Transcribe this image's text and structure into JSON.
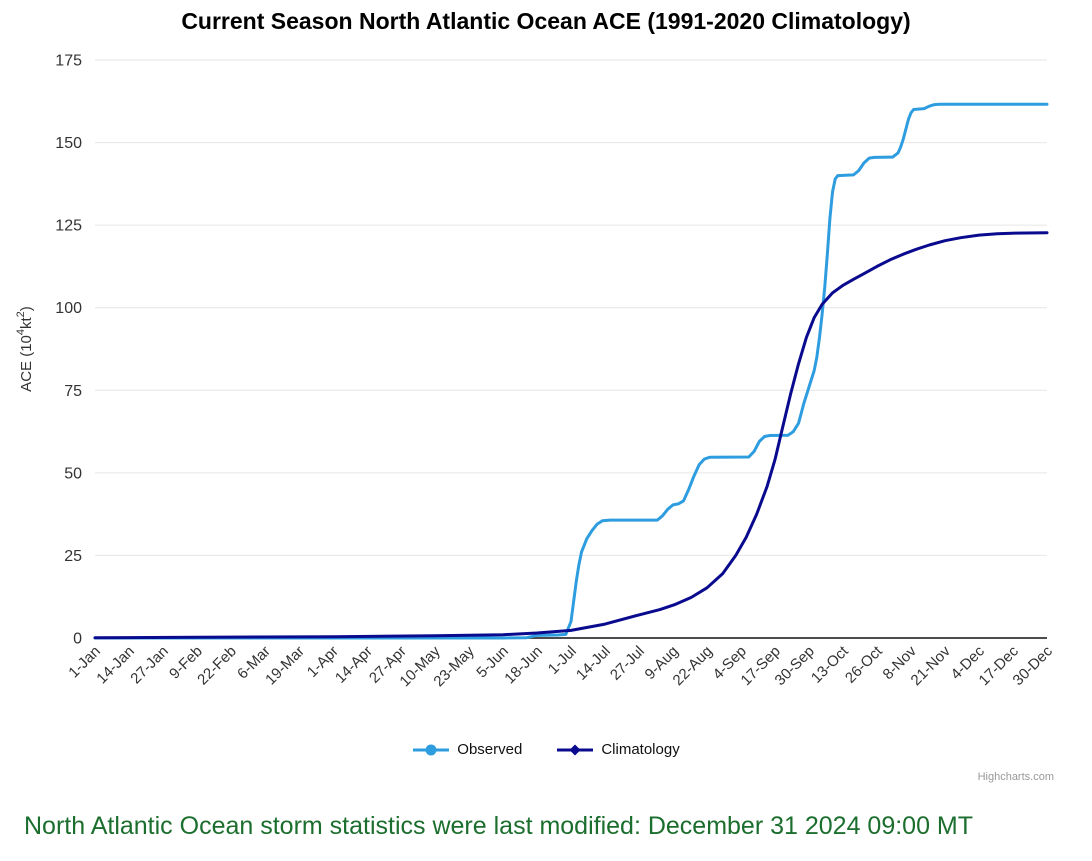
{
  "title": "Current Season North Atlantic Ocean ACE (1991-2020 Climatology)",
  "credit": "Highcharts.com",
  "footer_note": "North Atlantic Ocean storm statistics were last modified: December 31 2024 09:00 MT",
  "colors": {
    "observed": "#2e9de0",
    "climatology": "#0a0a8f",
    "grid": "#e6e6e6",
    "axis_line": "#333333",
    "tick_text": "#333333",
    "title_text": "#000000",
    "note_green": "#1b6e2d",
    "credit_gray": "#999999",
    "background": "#ffffff"
  },
  "chart_data": {
    "type": "line",
    "title": "Current Season North Atlantic Ocean ACE (1991-2020 Climatology)",
    "xlabel": "",
    "ylabel": "ACE (10⁴kt²)",
    "ylabel_segments": [
      {
        "t": "ACE (10"
      },
      {
        "t": "4",
        "sup": true
      },
      {
        "t": "kt"
      },
      {
        "t": "2",
        "sup": true
      },
      {
        "t": ")"
      }
    ],
    "ylim": [
      0,
      175
    ],
    "y_ticks": [
      0,
      25,
      50,
      75,
      100,
      125,
      150,
      175
    ],
    "x_unit": "day-of-year",
    "x_tick_days_interval": 13,
    "x_tick_labels": [
      "1-Jan",
      "14-Jan",
      "27-Jan",
      "9-Feb",
      "22-Feb",
      "6-Mar",
      "19-Mar",
      "1-Apr",
      "14-Apr",
      "27-Apr",
      "10-May",
      "23-May",
      "5-Jun",
      "18-Jun",
      "1-Jul",
      "14-Jul",
      "27-Jul",
      "9-Aug",
      "22-Aug",
      "4-Sep",
      "17-Sep",
      "30-Sep",
      "13-Oct",
      "26-Oct",
      "8-Nov",
      "21-Nov",
      "4-Dec",
      "17-Dec",
      "30-Dec"
    ],
    "grid": "horizontal",
    "legend_position": "bottom",
    "series": [
      {
        "name": "Observed",
        "color": "#2e9de0",
        "marker": "circle",
        "points": [
          [
            1,
            0
          ],
          [
            40,
            0
          ],
          [
            92,
            0
          ],
          [
            131,
            0
          ],
          [
            157,
            0
          ],
          [
            166,
            0.1
          ],
          [
            170,
            0.8
          ],
          [
            178,
            0.9
          ],
          [
            181,
            1.1
          ],
          [
            183,
            5
          ],
          [
            184,
            11
          ],
          [
            185,
            17
          ],
          [
            186,
            22
          ],
          [
            187,
            26
          ],
          [
            189,
            30
          ],
          [
            191,
            32.5
          ],
          [
            193,
            34.5
          ],
          [
            195,
            35.5
          ],
          [
            198,
            35.7
          ],
          [
            216,
            35.7
          ],
          [
            218,
            37
          ],
          [
            220,
            39
          ],
          [
            222,
            40.3
          ],
          [
            224,
            40.6
          ],
          [
            226,
            41.5
          ],
          [
            228,
            45
          ],
          [
            230,
            49
          ],
          [
            232,
            52.5
          ],
          [
            234,
            54.2
          ],
          [
            236,
            54.7
          ],
          [
            251,
            54.8
          ],
          [
            253,
            56.5
          ],
          [
            255,
            59.5
          ],
          [
            257,
            61
          ],
          [
            259,
            61.3
          ],
          [
            266,
            61.4
          ],
          [
            268,
            62.5
          ],
          [
            270,
            65
          ],
          [
            271,
            68
          ],
          [
            272,
            71
          ],
          [
            274,
            76
          ],
          [
            276,
            81
          ],
          [
            277,
            85
          ],
          [
            278,
            91
          ],
          [
            279,
            98
          ],
          [
            280,
            106
          ],
          [
            281,
            116
          ],
          [
            282,
            127
          ],
          [
            283,
            135
          ],
          [
            284,
            139
          ],
          [
            285,
            140
          ],
          [
            291,
            140.2
          ],
          [
            293,
            141.5
          ],
          [
            295,
            143.8
          ],
          [
            297,
            145.3
          ],
          [
            299,
            145.5
          ],
          [
            306,
            145.6
          ],
          [
            308,
            146.8
          ],
          [
            309,
            148.5
          ],
          [
            310,
            151
          ],
          [
            311,
            154
          ],
          [
            312,
            157
          ],
          [
            313,
            159
          ],
          [
            314,
            160
          ],
          [
            318,
            160.3
          ],
          [
            320,
            161
          ],
          [
            322,
            161.5
          ],
          [
            324,
            161.6
          ],
          [
            365,
            161.6
          ]
        ]
      },
      {
        "name": "Climatology",
        "color": "#0a0a8f",
        "marker": "diamond",
        "points": [
          [
            1,
            0.1
          ],
          [
            40,
            0.2
          ],
          [
            92,
            0.4
          ],
          [
            131,
            0.7
          ],
          [
            157,
            1
          ],
          [
            170,
            1.5
          ],
          [
            183,
            2.3
          ],
          [
            196,
            4.2
          ],
          [
            209,
            7
          ],
          [
            217,
            8.6
          ],
          [
            223,
            10.2
          ],
          [
            229,
            12.3
          ],
          [
            235,
            15.2
          ],
          [
            241,
            19.5
          ],
          [
            246,
            25
          ],
          [
            250,
            30.5
          ],
          [
            254,
            37.5
          ],
          [
            258,
            46
          ],
          [
            261,
            54
          ],
          [
            264,
            64
          ],
          [
            267,
            74
          ],
          [
            270,
            83
          ],
          [
            273,
            91
          ],
          [
            276,
            97
          ],
          [
            279,
            101
          ],
          [
            283,
            104.5
          ],
          [
            287,
            106.8
          ],
          [
            291,
            108.6
          ],
          [
            295,
            110.3
          ],
          [
            300,
            112.5
          ],
          [
            305,
            114.5
          ],
          [
            310,
            116.2
          ],
          [
            315,
            117.7
          ],
          [
            320,
            119
          ],
          [
            326,
            120.3
          ],
          [
            332,
            121.2
          ],
          [
            339,
            122
          ],
          [
            346,
            122.4
          ],
          [
            353,
            122.6
          ],
          [
            365,
            122.7
          ]
        ]
      }
    ]
  },
  "legend": [
    {
      "label": "Observed"
    },
    {
      "label": "Climatology"
    }
  ]
}
